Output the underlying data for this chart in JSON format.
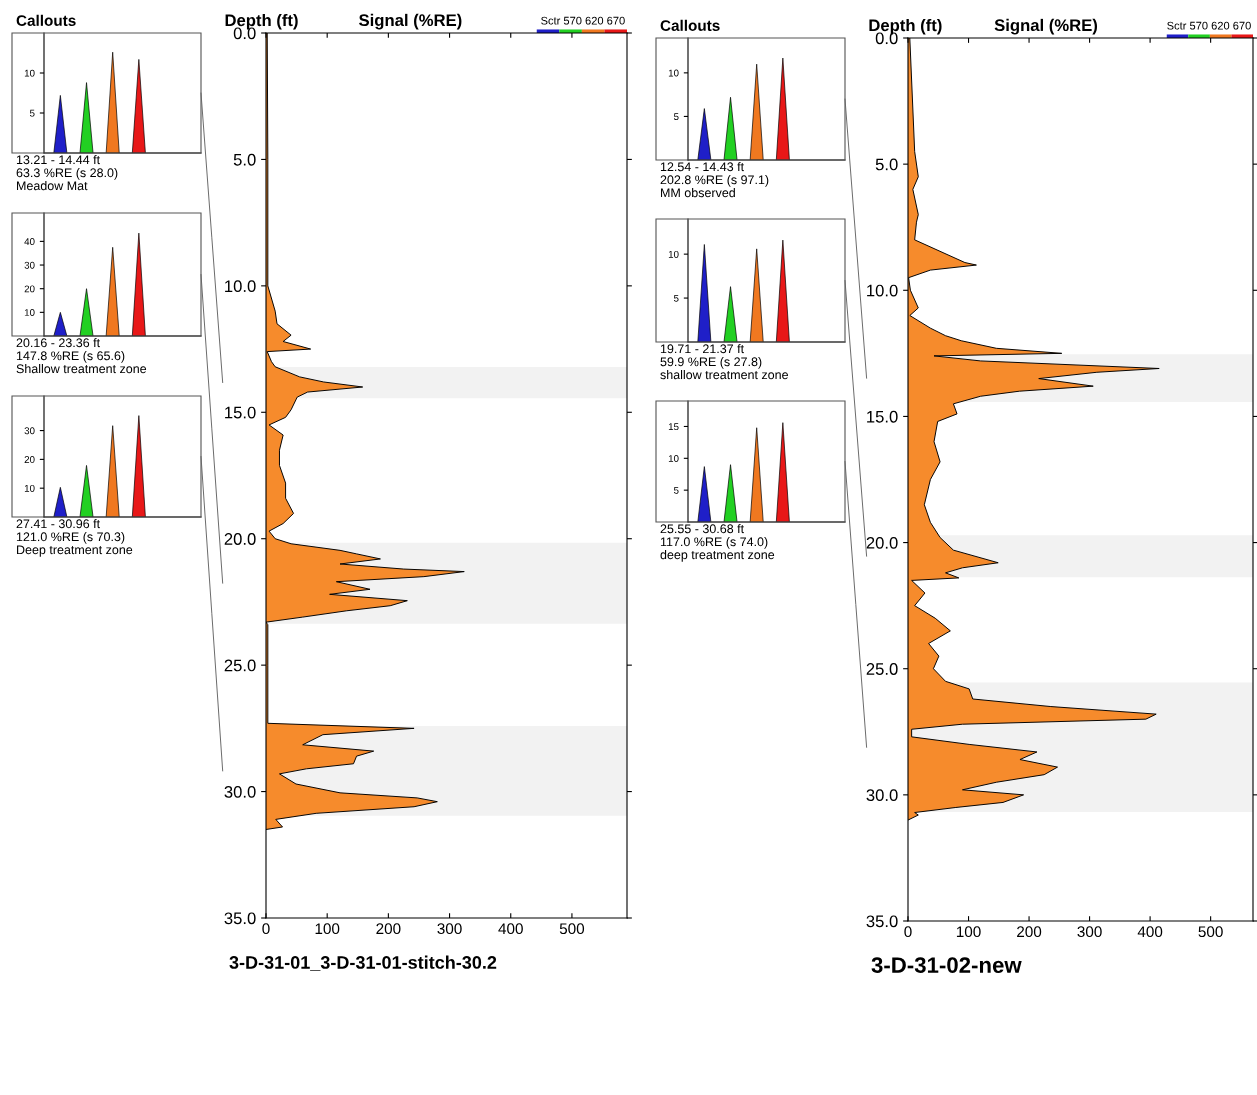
{
  "chart_data": [
    {
      "type": "area",
      "title": "Callouts",
      "categories": [
        null,
        null,
        null,
        null,
        null,
        null,
        null,
        null,
        null,
        null,
        null,
        null,
        null,
        null,
        null,
        null,
        null,
        null,
        null,
        null,
        null,
        null,
        null,
        null
      ],
      "tick_labels": "y",
      "ylim": [
        0,
        15
      ],
      "yticks": [
        5,
        10
      ],
      "series": [
        {
          "color": "#1f1fc8",
          "values": [
            null,
            0,
            7.2,
            0,
            null,
            null,
            null,
            null,
            null,
            null,
            null,
            null,
            null,
            null,
            null,
            null,
            null,
            null,
            null,
            null,
            null,
            null,
            null,
            null
          ]
        },
        {
          "color": "#22d022",
          "values": [
            null,
            null,
            null,
            null,
            null,
            0,
            8.8,
            0,
            null,
            null,
            null,
            null,
            null,
            null,
            null,
            null,
            null,
            null,
            null,
            null,
            null,
            null,
            null,
            null
          ]
        },
        {
          "color": "#f07820",
          "values": [
            null,
            null,
            null,
            null,
            null,
            null,
            null,
            null,
            null,
            0,
            12.6,
            0,
            null,
            null,
            null,
            null,
            null,
            null,
            null,
            null,
            null,
            null,
            null,
            null
          ]
        },
        {
          "color": "#e81818",
          "values": [
            null,
            null,
            null,
            null,
            null,
            null,
            null,
            null,
            null,
            null,
            null,
            null,
            null,
            0,
            11.7,
            0,
            null,
            null,
            null,
            null,
            null,
            null,
            null,
            null
          ]
        }
      ],
      "annotations": [
        "13.21 - 14.44 ft",
        "63.3 %RE (s 28.0)",
        "Meadow Mat"
      ]
    },
    {
      "type": "area",
      "categories": [
        null,
        null,
        null,
        null,
        null,
        null,
        null,
        null,
        null,
        null,
        null,
        null,
        null,
        null,
        null,
        null,
        null,
        null,
        null,
        null,
        null,
        null,
        null,
        null
      ],
      "tick_labels": "y",
      "ylim": [
        0,
        52
      ],
      "yticks": [
        10,
        20,
        30,
        40
      ],
      "series": [
        {
          "color": "#1f1fc8",
          "values": [
            null,
            0,
            10,
            0,
            null,
            null,
            null,
            null,
            null,
            null,
            null,
            null,
            null,
            null,
            null,
            null,
            null,
            null,
            null,
            null,
            null,
            null,
            null,
            null
          ]
        },
        {
          "color": "#22d022",
          "values": [
            null,
            null,
            null,
            null,
            null,
            0,
            20,
            0,
            null,
            null,
            null,
            null,
            null,
            null,
            null,
            null,
            null,
            null,
            null,
            null,
            null,
            null,
            null,
            null
          ]
        },
        {
          "color": "#f07820",
          "values": [
            null,
            null,
            null,
            null,
            null,
            null,
            null,
            null,
            null,
            0,
            37.5,
            0,
            null,
            null,
            null,
            null,
            null,
            null,
            null,
            null,
            null,
            null,
            null,
            null
          ]
        },
        {
          "color": "#e81818",
          "values": [
            null,
            null,
            null,
            null,
            null,
            null,
            null,
            null,
            null,
            null,
            null,
            null,
            null,
            0,
            43.5,
            0,
            null,
            null,
            null,
            null,
            null,
            null,
            null,
            null
          ]
        }
      ],
      "annotations": [
        "20.16 - 23.36 ft",
        "147.8 %RE (s 65.6)",
        "Shallow treatment zone"
      ]
    },
    {
      "type": "area",
      "categories": [
        null,
        null,
        null,
        null,
        null,
        null,
        null,
        null,
        null,
        null,
        null,
        null,
        null,
        null,
        null,
        null,
        null,
        null,
        null,
        null,
        null,
        null,
        null,
        null
      ],
      "tick_labels": "y",
      "ylim": [
        0,
        42
      ],
      "yticks": [
        10,
        20,
        30
      ],
      "series": [
        {
          "color": "#1f1fc8",
          "values": [
            null,
            0,
            10.3,
            0,
            null,
            null,
            null,
            null,
            null,
            null,
            null,
            null,
            null,
            null,
            null,
            null,
            null,
            null,
            null,
            null,
            null,
            null,
            null,
            null
          ]
        },
        {
          "color": "#22d022",
          "values": [
            null,
            null,
            null,
            null,
            null,
            0,
            17.9,
            0,
            null,
            null,
            null,
            null,
            null,
            null,
            null,
            null,
            null,
            null,
            null,
            null,
            null,
            null,
            null,
            null
          ]
        },
        {
          "color": "#f07820",
          "values": [
            null,
            null,
            null,
            null,
            null,
            null,
            null,
            null,
            null,
            0,
            31.7,
            0,
            null,
            null,
            null,
            null,
            null,
            null,
            null,
            null,
            null,
            null,
            null,
            null
          ]
        },
        {
          "color": "#e81818",
          "values": [
            null,
            null,
            null,
            null,
            null,
            null,
            null,
            null,
            null,
            null,
            null,
            null,
            null,
            0,
            35.2,
            0,
            null,
            null,
            null,
            null,
            null,
            null,
            null,
            null
          ]
        }
      ],
      "annotations": [
        "27.41 - 30.96 ft",
        "121.0 %RE (s 70.3)",
        "Deep treatment zone"
      ]
    },
    {
      "type": "area",
      "orientation": "horizontal",
      "xlabel": "Signal (%RE)",
      "ylabel": "Depth (ft)",
      "xlim": [
        0,
        590
      ],
      "xticks": [
        0,
        100,
        200,
        300,
        400,
        500
      ],
      "ylim": [
        35,
        0
      ],
      "yticks": [
        {
          "value": 0,
          "label": "0.0"
        },
        {
          "value": 5,
          "label": "5.0"
        },
        {
          "value": 10,
          "label": "10.0"
        },
        {
          "value": 15,
          "label": "15.0"
        },
        {
          "value": 20,
          "label": "20.0"
        },
        {
          "value": 25,
          "label": "25.0"
        },
        {
          "value": 30,
          "label": "30.0"
        },
        {
          "value": 35,
          "label": "35.0"
        }
      ],
      "x": [
        0,
        5,
        10,
        11.0,
        11.5,
        11.95,
        12.2,
        12.5,
        12.6,
        13.0,
        13.2,
        13.6,
        13.8,
        14.0,
        14.2,
        14.4,
        14.9,
        15.2,
        15.5,
        15.9,
        16.5,
        17.1,
        17.8,
        18.4,
        19.0,
        19.4,
        19.7,
        20.0,
        20.2,
        20.46,
        20.6,
        20.8,
        21.0,
        21.2,
        21.3,
        21.5,
        21.7,
        22.0,
        22.2,
        22.45,
        22.65,
        22.85,
        23.1,
        23.3,
        23.4,
        25,
        27.3,
        27.5,
        27.75,
        28.15,
        28.4,
        28.6,
        28.9,
        29.1,
        29.3,
        29.7,
        30.05,
        30.25,
        30.4,
        30.6,
        30.86,
        31.1,
        31.4,
        31.5
      ],
      "series": [
        {
          "color": "#f68b2c",
          "values": [
            2,
            3,
            3,
            15,
            18,
            41,
            28,
            73,
            2,
            9,
            15,
            55,
            94,
            158,
            68,
            51,
            41,
            32,
            5,
            28,
            22,
            22,
            32,
            32,
            45,
            28,
            5,
            15,
            41,
            121,
            148,
            187,
            121,
            225,
            324,
            258,
            115,
            170,
            104,
            231,
            203,
            132,
            60,
            0,
            3,
            3,
            3,
            242,
            93,
            60,
            176,
            148,
            143,
            66,
            22,
            49,
            121,
            247,
            280,
            242,
            82,
            16,
            27,
            0
          ]
        }
      ],
      "bands": [
        {
          "axis": "y",
          "from": 13.21,
          "to": 14.44,
          "color": "#f2f2f2"
        },
        {
          "axis": "y",
          "from": 20.16,
          "to": 23.36,
          "color": "#f2f2f2"
        },
        {
          "axis": "y",
          "from": 27.41,
          "to": 30.96,
          "color": "#f2f2f2"
        }
      ],
      "annotations": [
        "Sctr 570 620 670",
        "3-D-31-01_3-D-31-01-stitch-30.2"
      ]
    },
    {
      "type": "area",
      "title": "Callouts",
      "categories": [
        null,
        null,
        null,
        null,
        null,
        null,
        null,
        null,
        null,
        null,
        null,
        null,
        null,
        null,
        null,
        null,
        null,
        null,
        null,
        null,
        null,
        null,
        null,
        null
      ],
      "tick_labels": "y",
      "ylim": [
        0,
        14
      ],
      "yticks": [
        5,
        10
      ],
      "series": [
        {
          "color": "#1f1fc8",
          "values": [
            null,
            0,
            5.9,
            0,
            null,
            null,
            null,
            null,
            null,
            null,
            null,
            null,
            null,
            null,
            null,
            null,
            null,
            null,
            null,
            null,
            null,
            null,
            null,
            null
          ]
        },
        {
          "color": "#22d022",
          "values": [
            null,
            null,
            null,
            null,
            null,
            0,
            7.2,
            0,
            null,
            null,
            null,
            null,
            null,
            null,
            null,
            null,
            null,
            null,
            null,
            null,
            null,
            null,
            null,
            null
          ]
        },
        {
          "color": "#f07820",
          "values": [
            null,
            null,
            null,
            null,
            null,
            null,
            null,
            null,
            null,
            0,
            11.0,
            0,
            null,
            null,
            null,
            null,
            null,
            null,
            null,
            null,
            null,
            null,
            null,
            null
          ]
        },
        {
          "color": "#e81818",
          "values": [
            null,
            null,
            null,
            null,
            null,
            null,
            null,
            null,
            null,
            null,
            null,
            null,
            null,
            0,
            11.7,
            0,
            null,
            null,
            null,
            null,
            null,
            null,
            null,
            null
          ]
        }
      ],
      "annotations": [
        "12.54 - 14.43 ft",
        "202.8 %RE (s 97.1)",
        "MM observed"
      ]
    },
    {
      "type": "area",
      "categories": [
        null,
        null,
        null,
        null,
        null,
        null,
        null,
        null,
        null,
        null,
        null,
        null,
        null,
        null,
        null,
        null,
        null,
        null,
        null,
        null,
        null,
        null,
        null,
        null
      ],
      "tick_labels": "y",
      "ylim": [
        0,
        14
      ],
      "yticks": [
        5,
        10
      ],
      "series": [
        {
          "color": "#1f1fc8",
          "values": [
            null,
            0,
            11.1,
            0,
            null,
            null,
            null,
            null,
            null,
            null,
            null,
            null,
            null,
            null,
            null,
            null,
            null,
            null,
            null,
            null,
            null,
            null,
            null,
            null
          ]
        },
        {
          "color": "#22d022",
          "values": [
            null,
            null,
            null,
            null,
            null,
            0,
            6.3,
            0,
            null,
            null,
            null,
            null,
            null,
            null,
            null,
            null,
            null,
            null,
            null,
            null,
            null,
            null,
            null,
            null
          ]
        },
        {
          "color": "#f07820",
          "values": [
            null,
            null,
            null,
            null,
            null,
            null,
            null,
            null,
            null,
            0,
            10.6,
            0,
            null,
            null,
            null,
            null,
            null,
            null,
            null,
            null,
            null,
            null,
            null,
            null
          ]
        },
        {
          "color": "#e81818",
          "values": [
            null,
            null,
            null,
            null,
            null,
            null,
            null,
            null,
            null,
            null,
            null,
            null,
            null,
            0,
            11.6,
            0,
            null,
            null,
            null,
            null,
            null,
            null,
            null,
            null
          ]
        }
      ],
      "annotations": [
        "19.71 - 21.37 ft",
        "59.9 %RE (s 27.8)",
        "shallow treatment zone"
      ]
    },
    {
      "type": "area",
      "categories": [
        null,
        null,
        null,
        null,
        null,
        null,
        null,
        null,
        null,
        null,
        null,
        null,
        null,
        null,
        null,
        null,
        null,
        null,
        null,
        null,
        null,
        null,
        null,
        null
      ],
      "tick_labels": "y",
      "ylim": [
        0,
        19
      ],
      "yticks": [
        5,
        10,
        15
      ],
      "series": [
        {
          "color": "#1f1fc8",
          "values": [
            null,
            0,
            8.7,
            0,
            null,
            null,
            null,
            null,
            null,
            null,
            null,
            null,
            null,
            null,
            null,
            null,
            null,
            null,
            null,
            null,
            null,
            null,
            null,
            null
          ]
        },
        {
          "color": "#22d022",
          "values": [
            null,
            null,
            null,
            null,
            null,
            0,
            9.0,
            0,
            null,
            null,
            null,
            null,
            null,
            null,
            null,
            null,
            null,
            null,
            null,
            null,
            null,
            null,
            null,
            null
          ]
        },
        {
          "color": "#f07820",
          "values": [
            null,
            null,
            null,
            null,
            null,
            null,
            null,
            null,
            null,
            0,
            14.8,
            0,
            null,
            null,
            null,
            null,
            null,
            null,
            null,
            null,
            null,
            null,
            null,
            null
          ]
        },
        {
          "color": "#e81818",
          "values": [
            null,
            null,
            null,
            null,
            null,
            null,
            null,
            null,
            null,
            null,
            null,
            null,
            null,
            0,
            15.6,
            0,
            null,
            null,
            null,
            null,
            null,
            null,
            null,
            null
          ]
        }
      ],
      "annotations": [
        "25.55 - 30.68 ft",
        "117.0 %RE (s 74.0)",
        "deep treatment zone"
      ]
    },
    {
      "type": "area",
      "orientation": "horizontal",
      "xlabel": "Signal (%RE)",
      "ylabel": "Depth (ft)",
      "xlim": [
        0,
        570
      ],
      "xticks": [
        0,
        100,
        200,
        300,
        400,
        500
      ],
      "ylim": [
        35,
        0
      ],
      "yticks": [
        {
          "value": 0,
          "label": "0.0"
        },
        {
          "value": 5,
          "label": "5.0"
        },
        {
          "value": 10,
          "label": "10.0"
        },
        {
          "value": 15,
          "label": "15.0"
        },
        {
          "value": 20,
          "label": "20.0"
        },
        {
          "value": 25,
          "label": "25.0"
        },
        {
          "value": 30,
          "label": "30.0"
        },
        {
          "value": 35,
          "label": "35.0"
        }
      ],
      "x": [
        0,
        4.5,
        5.5,
        6.0,
        7.0,
        7.3,
        8.0,
        8.9,
        9.0,
        9.2,
        9.5,
        10.0,
        10.7,
        11.0,
        11.5,
        11.8,
        12.0,
        12.3,
        12.5,
        12.6,
        12.8,
        13.1,
        13.25,
        13.5,
        13.8,
        14.0,
        14.2,
        14.5,
        14.9,
        15.2,
        16.0,
        16.8,
        17.5,
        18.5,
        19.2,
        19.8,
        20.3,
        20.8,
        21.0,
        21.2,
        21.4,
        21.5,
        22.0,
        22.5,
        23.0,
        23.5,
        24.0,
        24.5,
        25.0,
        25.5,
        25.8,
        26.2,
        26.5,
        26.8,
        27.0,
        27.2,
        27.4,
        27.7,
        28.0,
        28.3,
        28.6,
        28.9,
        29.2,
        29.5,
        29.8,
        30.0,
        30.3,
        30.5,
        30.7,
        30.8,
        31.0
      ],
      "series": [
        {
          "color": "#f68b2c",
          "values": [
            3,
            11,
            17,
            8,
            17,
            14,
            11,
            94,
            113,
            37,
            1,
            4,
            17,
            3,
            37,
            62,
            88,
            146,
            254,
            43,
            120,
            415,
            312,
            216,
            306,
            184,
            120,
            75,
            81,
            49,
            43,
            53,
            37,
            27,
            37,
            53,
            75,
            149,
            90,
            62,
            84,
            6,
            28,
            11,
            45,
            70,
            34,
            51,
            42,
            62,
            101,
            107,
            236,
            410,
            393,
            90,
            6,
            6,
            101,
            213,
            185,
            247,
            225,
            146,
            90,
            191,
            157,
            79,
            11,
            17,
            0
          ]
        }
      ],
      "bands": [
        {
          "axis": "y",
          "from": 12.54,
          "to": 14.43,
          "color": "#f2f2f2"
        },
        {
          "axis": "y",
          "from": 19.71,
          "to": 21.37,
          "color": "#f2f2f2"
        },
        {
          "axis": "y",
          "from": 25.55,
          "to": 30.68,
          "color": "#f2f2f2"
        }
      ],
      "annotations": [
        "Sctr 570 620 670",
        "3-D-31-02-new"
      ]
    }
  ]
}
